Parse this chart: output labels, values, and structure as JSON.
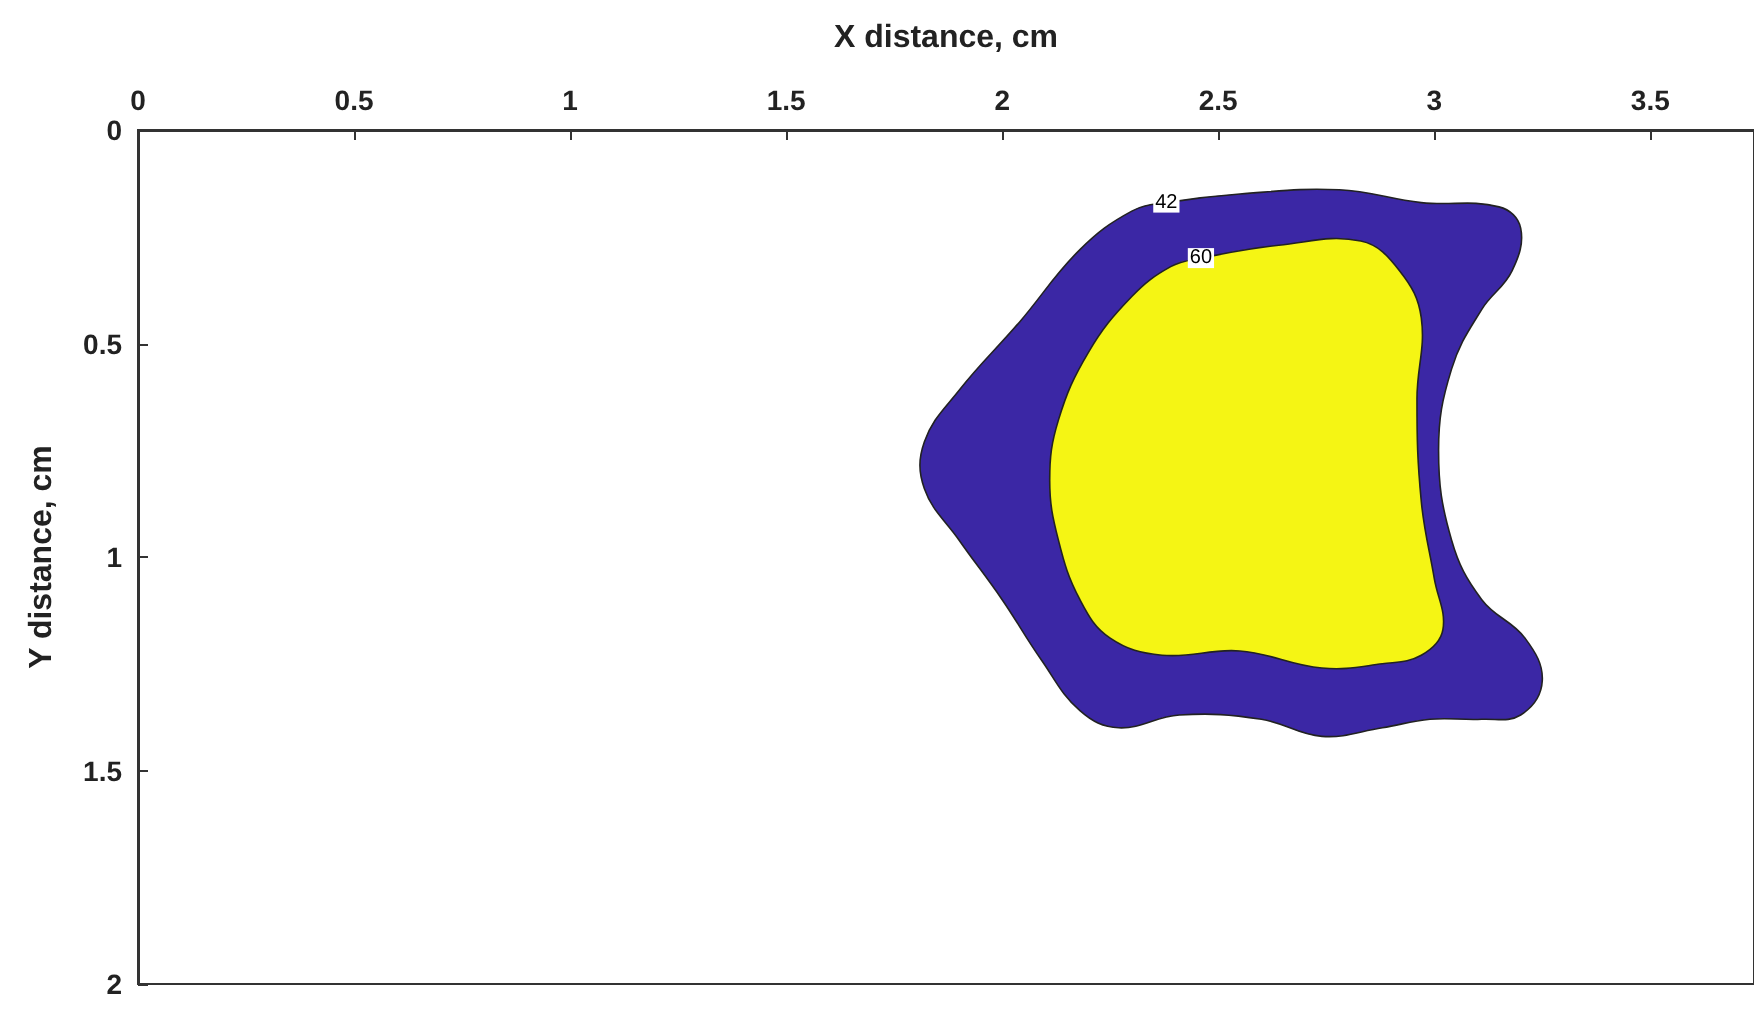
{
  "chart_data": {
    "type": "area",
    "xlabel": "X distance, cm",
    "ylabel": "Y distance, cm",
    "xlim": [
      0,
      3.74
    ],
    "xticks": [
      0,
      0.5,
      1,
      1.5,
      2,
      2.5,
      3,
      3.5
    ],
    "ylim": [
      2,
      0
    ],
    "yticks": [
      0,
      0.5,
      1,
      1.5,
      2
    ],
    "grid": false,
    "legend": false,
    "series": [
      {
        "name": "42",
        "color": "#3b27a5",
        "x": [
          2.38,
          2.55,
          2.78,
          2.97,
          3.15,
          3.2,
          3.18,
          3.11,
          3.04,
          3.01,
          3.04,
          3.11,
          3.21,
          3.25,
          3.2,
          3.11,
          2.99,
          2.88,
          2.74,
          2.6,
          2.41,
          2.27,
          2.18,
          2.09,
          2.0,
          1.9,
          1.82,
          1.82,
          1.9,
          2.04,
          2.18,
          2.3
        ],
        "values": [
          0.17,
          0.15,
          0.14,
          0.17,
          0.18,
          0.23,
          0.33,
          0.42,
          0.56,
          0.75,
          0.96,
          1.1,
          1.19,
          1.29,
          1.37,
          1.38,
          1.38,
          1.4,
          1.42,
          1.38,
          1.37,
          1.4,
          1.36,
          1.24,
          1.1,
          0.96,
          0.84,
          0.73,
          0.61,
          0.45,
          0.28,
          0.19
        ]
      },
      {
        "name": "60",
        "color": "#f5f514",
        "x": [
          2.46,
          2.64,
          2.83,
          2.92,
          2.97,
          2.96,
          2.97,
          3.0,
          3.02,
          2.97,
          2.88,
          2.74,
          2.55,
          2.37,
          2.25,
          2.18,
          2.13,
          2.11,
          2.13,
          2.2,
          2.3,
          2.39
        ],
        "values": [
          0.3,
          0.27,
          0.26,
          0.33,
          0.44,
          0.63,
          0.87,
          1.05,
          1.17,
          1.23,
          1.25,
          1.26,
          1.22,
          1.23,
          1.19,
          1.1,
          0.96,
          0.82,
          0.68,
          0.52,
          0.39,
          0.32
        ]
      }
    ]
  }
}
